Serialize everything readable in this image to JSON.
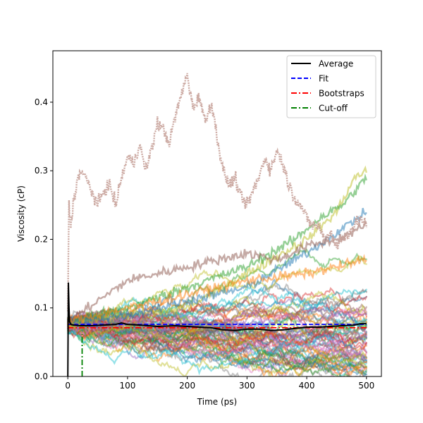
{
  "chart_data": {
    "type": "line",
    "xlabel": "Time (ps)",
    "ylabel": "Viscosity (cP)",
    "xlim": [
      -25,
      525
    ],
    "ylim": [
      0,
      0.475
    ],
    "xticks": [
      "0",
      "100",
      "200",
      "300",
      "400",
      "500"
    ],
    "yticks": [
      "0.0",
      "0.1",
      "0.2",
      "0.3",
      "0.4"
    ],
    "legend_position": "top-right",
    "legend": [
      {
        "label": "Average",
        "color": "#000000",
        "style": "solid"
      },
      {
        "label": "Fit",
        "color": "#0000ff",
        "style": "dashed"
      },
      {
        "label": "Bootstraps",
        "color": "#ff0000",
        "style": "dashdot"
      },
      {
        "label": "Cut-off",
        "color": "#008000",
        "style": "dashdot"
      }
    ],
    "average": {
      "x": [
        0,
        1,
        2,
        3,
        5,
        10,
        20,
        40,
        60,
        80,
        90,
        100,
        120,
        150,
        180,
        200,
        220,
        240,
        260,
        280,
        300,
        320,
        340,
        360,
        380,
        400,
        420,
        440,
        460,
        480,
        490,
        500
      ],
      "y": [
        0.0,
        0.137,
        0.1,
        0.08,
        0.076,
        0.075,
        0.074,
        0.074,
        0.075,
        0.076,
        0.078,
        0.076,
        0.075,
        0.073,
        0.074,
        0.073,
        0.072,
        0.071,
        0.068,
        0.067,
        0.069,
        0.069,
        0.067,
        0.068,
        0.07,
        0.072,
        0.072,
        0.073,
        0.074,
        0.075,
        0.077,
        0.077
      ]
    },
    "fit": {
      "x": [
        0,
        500
      ],
      "y": [
        0.076,
        0.076
      ]
    },
    "bootstraps": {
      "x": [
        0,
        500
      ],
      "y": [
        0.071,
        0.071
      ]
    },
    "cutoff": {
      "x": [
        24,
        24
      ],
      "y": [
        0,
        0.062
      ]
    },
    "high_trace": {
      "color": "#c49c94",
      "x": [
        0,
        2,
        5,
        10,
        20,
        30,
        40,
        50,
        60,
        70,
        80,
        90,
        100,
        110,
        120,
        130,
        140,
        150,
        160,
        170,
        180,
        190,
        200,
        210,
        220,
        230,
        240,
        250,
        260,
        270,
        280,
        290,
        300,
        310,
        320,
        330,
        340,
        350,
        360,
        370,
        380,
        390,
        400,
        410,
        420,
        430,
        440,
        450,
        460,
        470,
        480,
        490,
        500
      ],
      "y": [
        0.1,
        0.25,
        0.22,
        0.26,
        0.3,
        0.29,
        0.27,
        0.25,
        0.27,
        0.28,
        0.25,
        0.29,
        0.32,
        0.31,
        0.34,
        0.3,
        0.33,
        0.37,
        0.36,
        0.34,
        0.38,
        0.41,
        0.44,
        0.39,
        0.41,
        0.37,
        0.4,
        0.35,
        0.3,
        0.28,
        0.29,
        0.26,
        0.25,
        0.27,
        0.29,
        0.32,
        0.3,
        0.33,
        0.31,
        0.28,
        0.26,
        0.25,
        0.23,
        0.22,
        0.22,
        0.2,
        0.21,
        0.19,
        0.2,
        0.21,
        0.22,
        0.23,
        0.22
      ]
    },
    "extra_traces": [
      {
        "color": "#bcbd22",
        "x": [
          0,
          100,
          200,
          300,
          400,
          450,
          480,
          500
        ],
        "y": [
          0.08,
          0.09,
          0.1,
          0.15,
          0.2,
          0.24,
          0.29,
          0.3
        ]
      },
      {
        "color": "#2ca02c",
        "x": [
          0,
          100,
          200,
          300,
          380,
          420,
          460,
          500
        ],
        "y": [
          0.08,
          0.1,
          0.13,
          0.16,
          0.2,
          0.23,
          0.25,
          0.29
        ]
      },
      {
        "color": "#1f77b4",
        "x": [
          0,
          100,
          200,
          300,
          400,
          450,
          500
        ],
        "y": [
          0.08,
          0.09,
          0.11,
          0.13,
          0.18,
          0.21,
          0.24
        ]
      },
      {
        "color": "#8c564b",
        "x": [
          0,
          50,
          100,
          150,
          200,
          250,
          300,
          350,
          400,
          450,
          500
        ],
        "y": [
          0.08,
          0.11,
          0.14,
          0.15,
          0.16,
          0.17,
          0.18,
          0.17,
          0.19,
          0.2,
          0.22
        ]
      },
      {
        "color": "#ff7f0e",
        "x": [
          0,
          100,
          200,
          300,
          400,
          450,
          500
        ],
        "y": [
          0.08,
          0.1,
          0.12,
          0.14,
          0.15,
          0.16,
          0.17
        ]
      }
    ],
    "bootstrap_band": {
      "y_min": 0.0,
      "y_max": 0.14
    }
  }
}
